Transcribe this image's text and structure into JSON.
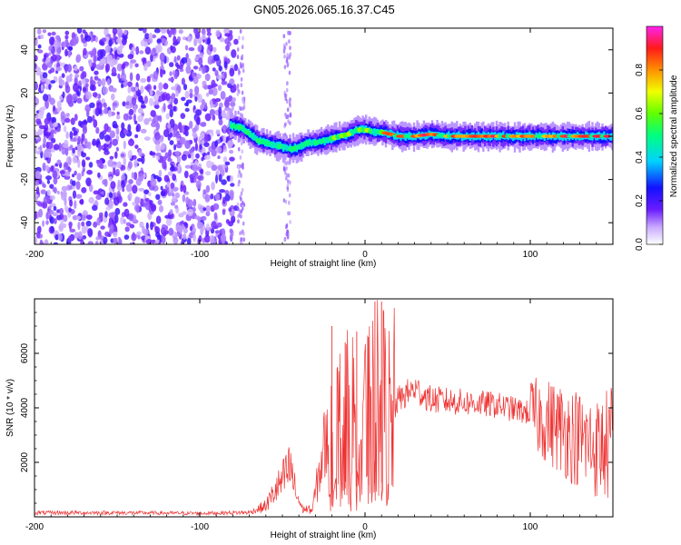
{
  "figure": {
    "title": "GN05.2026.065.16.37.C45"
  },
  "chart_data": [
    {
      "type": "heatmap",
      "name": "spectrogram",
      "xlabel": "Height of straight line (km)",
      "ylabel": "Frequency (Hz)",
      "xlim": [
        -200,
        150
      ],
      "ylim": [
        -50,
        50
      ],
      "xticks": [
        -200,
        -100,
        0,
        100
      ],
      "yticks": [
        -40,
        -20,
        0,
        20,
        40
      ],
      "colorbar": {
        "label": "Normalized spectral amplitude",
        "range": [
          0,
          1
        ],
        "ticks": [
          "0.0",
          "0.2",
          "0.4",
          "0.6",
          "0.8"
        ],
        "tick_values": [
          0.0,
          0.2,
          0.4,
          0.6,
          0.8
        ]
      },
      "ridge_center_hz": [
        [
          -82,
          5
        ],
        [
          -75,
          4
        ],
        [
          -70,
          1
        ],
        [
          -65,
          -2
        ],
        [
          -60,
          -3
        ],
        [
          -55,
          -4
        ],
        [
          -50,
          -5
        ],
        [
          -45,
          -6
        ],
        [
          -40,
          -5
        ],
        [
          -35,
          -3
        ],
        [
          -30,
          -3
        ],
        [
          -25,
          -2
        ],
        [
          -20,
          -1
        ],
        [
          -15,
          0
        ],
        [
          -10,
          1
        ],
        [
          -5,
          3
        ],
        [
          0,
          3
        ],
        [
          5,
          2
        ],
        [
          10,
          2
        ],
        [
          15,
          1
        ],
        [
          20,
          0
        ],
        [
          30,
          0
        ],
        [
          40,
          1
        ],
        [
          50,
          0
        ],
        [
          60,
          0
        ],
        [
          80,
          0
        ],
        [
          100,
          0
        ],
        [
          120,
          0
        ],
        [
          140,
          0
        ],
        [
          150,
          0
        ]
      ],
      "noise_region_km": [
        -200,
        -82
      ]
    },
    {
      "type": "line",
      "name": "snr",
      "xlabel": "Height of straight line (km)",
      "ylabel": "SNR (10 * v/v)",
      "xlim": [
        -200,
        150
      ],
      "ylim": [
        0,
        8000
      ],
      "xticks": [
        -200,
        -100,
        0,
        100
      ],
      "yticks": [
        2000,
        4000,
        6000
      ],
      "series_color": "#ee3333",
      "envelope": [
        [
          -200,
          150
        ],
        [
          -150,
          150
        ],
        [
          -100,
          130
        ],
        [
          -70,
          160
        ],
        [
          -60,
          400
        ],
        [
          -55,
          900
        ],
        [
          -50,
          1300
        ],
        [
          -45,
          1800
        ],
        [
          -42,
          900
        ],
        [
          -38,
          300
        ],
        [
          -32,
          250
        ],
        [
          -28,
          1500
        ],
        [
          -25,
          2500
        ],
        [
          -20,
          3000
        ],
        [
          -15,
          3300
        ],
        [
          -10,
          3600
        ],
        [
          -5,
          3700
        ],
        [
          0,
          3800
        ],
        [
          5,
          4000
        ],
        [
          10,
          4200
        ],
        [
          15,
          3600
        ],
        [
          20,
          4300
        ],
        [
          30,
          4700
        ],
        [
          40,
          4300
        ],
        [
          60,
          4200
        ],
        [
          80,
          4100
        ],
        [
          100,
          3800
        ],
        [
          120,
          3200
        ],
        [
          140,
          2500
        ],
        [
          150,
          2700
        ]
      ],
      "spikes": [
        [
          -20,
          7000
        ],
        [
          -12,
          6400
        ],
        [
          -5,
          6800
        ],
        [
          2,
          6600
        ],
        [
          6,
          7900
        ],
        [
          10,
          7900
        ]
      ]
    }
  ]
}
